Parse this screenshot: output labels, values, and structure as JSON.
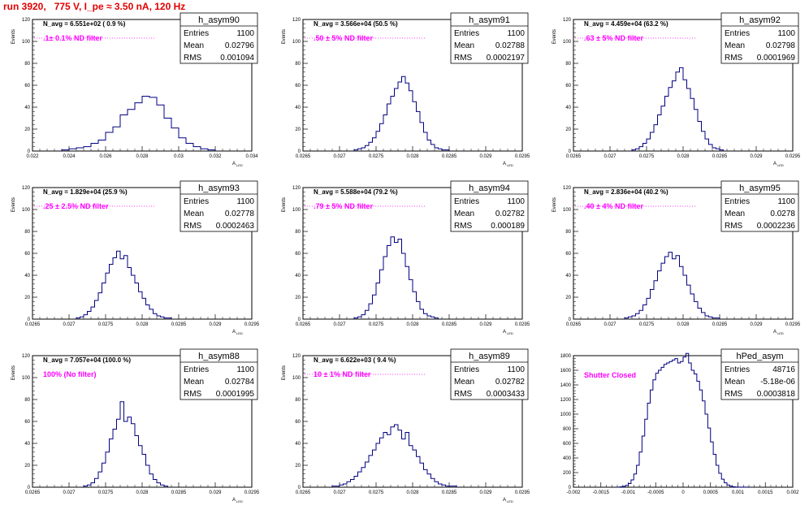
{
  "title": "run 3920,   775 V, I_pe ≈ 3.50 nA, 120 Hz",
  "chart_data": [
    {
      "type": "bar",
      "hist_name": "h_asym90",
      "stats": {
        "entries": "1100",
        "mean": "0.02796",
        "rms": "0.001094"
      },
      "n_avg_label": "N_avg = 6.551e+02 ( 0.9 %)",
      "filter_label": ".1± 0.1% ND filter",
      "ylabel": "Events",
      "xlabel": "A_LED",
      "xlim": [
        0.022,
        0.034
      ],
      "ylim": [
        0,
        120
      ],
      "xticks": [
        "0.022",
        "0.024",
        "0.026",
        "0.028",
        "0.03",
        "0.032",
        "0.034"
      ],
      "yticks": [
        "0",
        "20",
        "40",
        "60",
        "80",
        "100",
        "120"
      ],
      "bin_edges": [
        0.0236,
        0.024,
        0.0244,
        0.0248,
        0.0252,
        0.0256,
        0.026,
        0.0264,
        0.0268,
        0.0272,
        0.0276,
        0.028,
        0.0284,
        0.0288,
        0.0292,
        0.0296,
        0.03,
        0.0304,
        0.0308,
        0.0312,
        0.0316,
        0.032
      ],
      "values": [
        1,
        2,
        3,
        4,
        7,
        10,
        17,
        22,
        33,
        38,
        44,
        50,
        49,
        42,
        30,
        21,
        12,
        7,
        4,
        2,
        1
      ]
    },
    {
      "type": "bar",
      "hist_name": "h_asym91",
      "stats": {
        "entries": "1100",
        "mean": "0.02788",
        "rms": "0.0002197"
      },
      "n_avg_label": "N_avg = 3.566e+04 (50.5 %)",
      "filter_label": ".50 ± 5% ND filter",
      "ylabel": "Events",
      "xlabel": "A_LED",
      "xlim": [
        0.0265,
        0.0295
      ],
      "ylim": [
        0,
        120
      ],
      "xticks": [
        "0.0265",
        "0.027",
        "0.0275",
        "0.028",
        "0.0285",
        "0.029",
        "0.0295"
      ],
      "yticks": [
        "0",
        "20",
        "40",
        "60",
        "80",
        "100",
        "120"
      ],
      "bin_edges": [
        0.0272,
        0.02725,
        0.0273,
        0.02735,
        0.0274,
        0.02745,
        0.0275,
        0.02755,
        0.0276,
        0.02765,
        0.0277,
        0.02775,
        0.0278,
        0.02785,
        0.0279,
        0.02795,
        0.028,
        0.02805,
        0.0281,
        0.02815,
        0.0282,
        0.02825,
        0.0283,
        0.02835,
        0.0284,
        0.02845,
        0.0285
      ],
      "values": [
        1,
        2,
        3,
        5,
        8,
        12,
        18,
        25,
        33,
        43,
        50,
        57,
        63,
        68,
        62,
        55,
        45,
        36,
        26,
        17,
        10,
        6,
        3,
        2,
        1,
        1
      ]
    },
    {
      "type": "bar",
      "hist_name": "h_asym92",
      "stats": {
        "entries": "1100",
        "mean": "0.02798",
        "rms": "0.0001969"
      },
      "n_avg_label": "N_avg = 4.459e+04 (63.2 %)",
      "filter_label": ".63 ± 5% ND filter",
      "ylabel": "Events",
      "xlabel": "A_LED",
      "xlim": [
        0.0265,
        0.0295
      ],
      "ylim": [
        0,
        120
      ],
      "xticks": [
        "0.0265",
        "0.027",
        "0.0275",
        "0.028",
        "0.0285",
        "0.029",
        "0.0295"
      ],
      "yticks": [
        "0",
        "20",
        "40",
        "60",
        "80",
        "100",
        "120"
      ],
      "bin_edges": [
        0.0273,
        0.02735,
        0.0274,
        0.02745,
        0.0275,
        0.02755,
        0.0276,
        0.02765,
        0.0277,
        0.02775,
        0.0278,
        0.02785,
        0.0279,
        0.02795,
        0.028,
        0.02805,
        0.0281,
        0.02815,
        0.0282,
        0.02825,
        0.0283,
        0.02835,
        0.0284,
        0.02845,
        0.0285,
        0.02855
      ],
      "values": [
        1,
        2,
        4,
        7,
        11,
        17,
        24,
        33,
        41,
        50,
        58,
        64,
        72,
        76,
        65,
        57,
        48,
        38,
        27,
        18,
        11,
        6,
        3,
        2,
        1
      ]
    },
    {
      "type": "bar",
      "hist_name": "h_asym93",
      "stats": {
        "entries": "1100",
        "mean": "0.02778",
        "rms": "0.0002463"
      },
      "n_avg_label": "N_avg = 1.829e+04 (25.9 %)",
      "filter_label": ".25 ± 2.5% ND filter",
      "ylabel": "Events",
      "xlabel": "A_LED",
      "xlim": [
        0.0265,
        0.0295
      ],
      "ylim": [
        0,
        120
      ],
      "xticks": [
        "0.0265",
        "0.027",
        "0.0275",
        "0.028",
        "0.0285",
        "0.029",
        "0.0295"
      ],
      "yticks": [
        "0",
        "20",
        "40",
        "60",
        "80",
        "100",
        "120"
      ],
      "bin_edges": [
        0.0271,
        0.02715,
        0.0272,
        0.02725,
        0.0273,
        0.02735,
        0.0274,
        0.02745,
        0.0275,
        0.02755,
        0.0276,
        0.02765,
        0.0277,
        0.02775,
        0.0278,
        0.02785,
        0.0279,
        0.02795,
        0.028,
        0.02805,
        0.0281,
        0.02815,
        0.0282,
        0.02825,
        0.0283,
        0.02835,
        0.0284
      ],
      "values": [
        1,
        2,
        4,
        7,
        11,
        17,
        24,
        33,
        42,
        50,
        56,
        62,
        55,
        58,
        47,
        40,
        33,
        25,
        19,
        13,
        9,
        5,
        3,
        2,
        1,
        1
      ]
    },
    {
      "type": "bar",
      "hist_name": "h_asym94",
      "stats": {
        "entries": "1100",
        "mean": "0.02782",
        "rms": "0.000189"
      },
      "n_avg_label": "N_avg = 5.588e+04 (79.2 %)",
      "filter_label": ".79 ± 5% ND filter",
      "ylabel": "Events",
      "xlabel": "A_LED",
      "xlim": [
        0.0265,
        0.0295
      ],
      "ylim": [
        0,
        120
      ],
      "xticks": [
        "0.0265",
        "0.027",
        "0.0275",
        "0.028",
        "0.0285",
        "0.029",
        "0.0295"
      ],
      "yticks": [
        "0",
        "20",
        "40",
        "60",
        "80",
        "100",
        "120"
      ],
      "bin_edges": [
        0.0272,
        0.02725,
        0.0273,
        0.02735,
        0.0274,
        0.02745,
        0.0275,
        0.02755,
        0.0276,
        0.02765,
        0.0277,
        0.02775,
        0.0278,
        0.02785,
        0.0279,
        0.02795,
        0.028,
        0.02805,
        0.0281,
        0.02815,
        0.0282,
        0.02825,
        0.0283,
        0.02835
      ],
      "values": [
        1,
        2,
        4,
        8,
        14,
        22,
        33,
        45,
        57,
        67,
        75,
        70,
        73,
        60,
        48,
        36,
        25,
        16,
        9,
        5,
        3,
        2,
        1
      ]
    },
    {
      "type": "bar",
      "hist_name": "h_asym95",
      "stats": {
        "entries": "1100",
        "mean": "0.0278",
        "rms": "0.0002236"
      },
      "n_avg_label": "N_avg = 2.836e+04 (40.2 %)",
      "filter_label": ".40 ± 4% ND filter",
      "ylabel": "Events",
      "xlabel": "A_LED",
      "xlim": [
        0.0265,
        0.0295
      ],
      "ylim": [
        0,
        120
      ],
      "xticks": [
        "0.0265",
        "0.027",
        "0.0275",
        "0.028",
        "0.0285",
        "0.029",
        "0.0295"
      ],
      "yticks": [
        "0",
        "20",
        "40",
        "60",
        "80",
        "100",
        "120"
      ],
      "bin_edges": [
        0.0272,
        0.02725,
        0.0273,
        0.02735,
        0.0274,
        0.02745,
        0.0275,
        0.02755,
        0.0276,
        0.02765,
        0.0277,
        0.02775,
        0.0278,
        0.02785,
        0.0279,
        0.02795,
        0.028,
        0.02805,
        0.0281,
        0.02815,
        0.0282,
        0.02825,
        0.0283,
        0.02835,
        0.0284,
        0.02845,
        0.0285
      ],
      "values": [
        1,
        2,
        3,
        5,
        8,
        13,
        19,
        27,
        35,
        44,
        51,
        57,
        61,
        55,
        58,
        48,
        40,
        31,
        23,
        16,
        10,
        6,
        3,
        2,
        1,
        1
      ]
    },
    {
      "type": "bar",
      "hist_name": "h_asym88",
      "stats": {
        "entries": "1100",
        "mean": "0.02784",
        "rms": "0.0001995"
      },
      "n_avg_label": "N_avg = 7.057e+04 (100.0 %)",
      "filter_label": "100% (No filter)",
      "ylabel": "Events",
      "xlabel": "A_LED",
      "xlim": [
        0.0265,
        0.0295
      ],
      "ylim": [
        0,
        120
      ],
      "xticks": [
        "0.0265",
        "0.027",
        "0.0275",
        "0.028",
        "0.0285",
        "0.029",
        "0.0295"
      ],
      "yticks": [
        "0",
        "20",
        "40",
        "60",
        "80",
        "100",
        "120"
      ],
      "bin_edges": [
        0.0272,
        0.02725,
        0.0273,
        0.02735,
        0.0274,
        0.02745,
        0.0275,
        0.02755,
        0.0276,
        0.02765,
        0.0277,
        0.02775,
        0.0278,
        0.02785,
        0.0279,
        0.02795,
        0.028,
        0.02805,
        0.0281,
        0.02815,
        0.0282,
        0.02825,
        0.0283,
        0.02835
      ],
      "values": [
        1,
        2,
        4,
        8,
        14,
        22,
        32,
        44,
        53,
        62,
        78,
        60,
        64,
        58,
        47,
        38,
        30,
        20,
        12,
        7,
        4,
        2,
        1
      ]
    },
    {
      "type": "bar",
      "hist_name": "h_asym89",
      "stats": {
        "entries": "1100",
        "mean": "0.02782",
        "rms": "0.0003433"
      },
      "n_avg_label": "N_avg = 6.622e+03 ( 9.4 %)",
      "filter_label": "10 ± 1% ND filter",
      "ylabel": "Events",
      "xlabel": "A_LED",
      "xlim": [
        0.0265,
        0.0295
      ],
      "ylim": [
        0,
        120
      ],
      "xticks": [
        "0.0265",
        "0.027",
        "0.0275",
        "0.028",
        "0.0285",
        "0.029",
        "0.0295"
      ],
      "yticks": [
        "0",
        "20",
        "40",
        "60",
        "80",
        "100",
        "120"
      ],
      "bin_edges": [
        0.0269,
        0.02695,
        0.027,
        0.02705,
        0.0271,
        0.02715,
        0.0272,
        0.02725,
        0.0273,
        0.02735,
        0.0274,
        0.02745,
        0.0275,
        0.02755,
        0.0276,
        0.02765,
        0.0277,
        0.02775,
        0.0278,
        0.02785,
        0.0279,
        0.02795,
        0.028,
        0.02805,
        0.0281,
        0.02815,
        0.0282,
        0.02825,
        0.0283,
        0.02835,
        0.0284,
        0.02845,
        0.0285,
        0.02855,
        0.0286
      ],
      "values": [
        1,
        1,
        2,
        3,
        5,
        7,
        10,
        14,
        18,
        23,
        29,
        34,
        40,
        45,
        50,
        48,
        55,
        57,
        52,
        44,
        50,
        38,
        34,
        28,
        22,
        16,
        12,
        8,
        5,
        3,
        2,
        1,
        1,
        1
      ]
    },
    {
      "type": "bar",
      "hist_name": "hPed_asym",
      "stats": {
        "entries": "48716",
        "mean": "-5.18e-06",
        "rms": "0.0003818"
      },
      "n_avg_label": "",
      "filter_label": "Shutter Closed",
      "ylabel": "",
      "xlabel": "",
      "xlim": [
        -0.002,
        0.002
      ],
      "ylim": [
        0,
        1800
      ],
      "xticks": [
        "-0.002",
        "-0.0015",
        "-0.001",
        "-0.0005",
        "0",
        "0.0005",
        "0.001",
        "0.0015",
        "0.002"
      ],
      "yticks": [
        "0",
        "200",
        "400",
        "600",
        "800",
        "1000",
        "1200",
        "1400",
        "1600",
        "1800"
      ],
      "bin_edges": [
        -0.0012,
        -0.00115,
        -0.0011,
        -0.00105,
        -0.001,
        -0.00095,
        -0.0009,
        -0.00085,
        -0.0008,
        -0.00075,
        -0.0007,
        -0.00065,
        -0.0006,
        -0.00055,
        -0.0005,
        -0.00045,
        -0.0004,
        -0.00035,
        -0.0003,
        -0.00025,
        -0.0002,
        -0.00015,
        -0.0001,
        -5e-05,
        0,
        5e-05,
        0.0001,
        0.00015,
        0.0002,
        0.00025,
        0.0003,
        0.00035,
        0.0004,
        0.00045,
        0.0005,
        0.00055,
        0.0006,
        0.00065,
        0.0007,
        0.00075,
        0.0008,
        0.00085,
        0.0009,
        0.00095,
        0.001,
        0.00105,
        0.0011,
        0.00115,
        0.0012
      ],
      "values": [
        2,
        5,
        12,
        25,
        50,
        100,
        180,
        300,
        480,
        700,
        930,
        1150,
        1330,
        1470,
        1560,
        1600,
        1640,
        1680,
        1700,
        1720,
        1740,
        1760,
        1700,
        1720,
        1780,
        1830,
        1700,
        1600,
        1550,
        1450,
        1330,
        1180,
        1000,
        810,
        620,
        450,
        300,
        190,
        110,
        60,
        30,
        14,
        6,
        3,
        2,
        1,
        1,
        1
      ]
    }
  ]
}
